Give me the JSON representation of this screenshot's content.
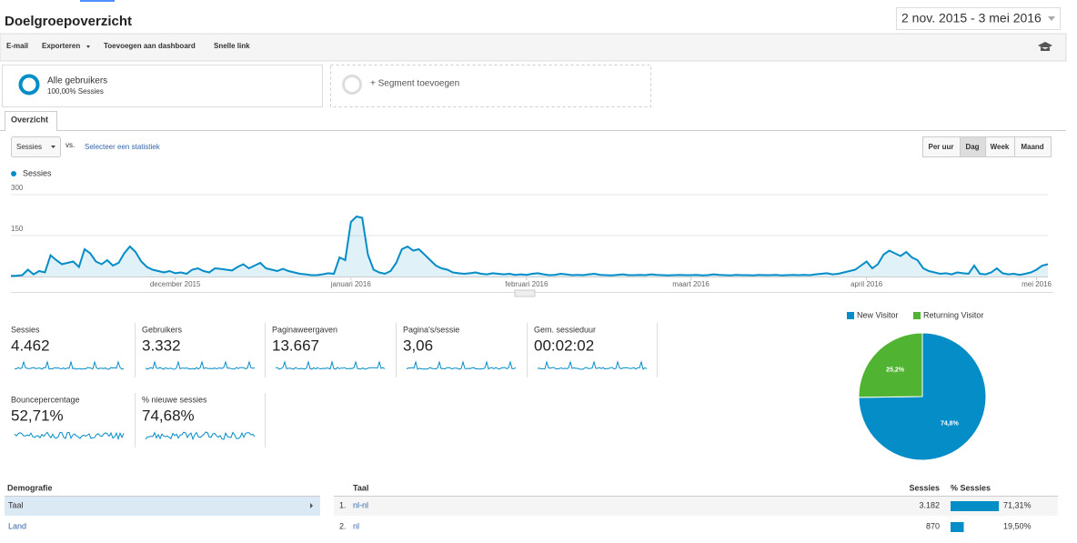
{
  "header": {
    "title": "Doelgroepoverzicht",
    "date_range": "2 nov. 2015 - 3 mei 2016"
  },
  "toolbar": [
    "E-mail",
    "Exporteren",
    "Toevoegen aan dashboard",
    "Snelle link"
  ],
  "segments": {
    "active": {
      "name": "Alle gebruikers",
      "detail": "100,00% Sessies"
    },
    "add": "+ Segment toevoegen"
  },
  "tab": "Overzicht",
  "controls": {
    "metric": "Sessies",
    "vs": "vs.",
    "select": "Selecteer een statistiek",
    "buttons": [
      "Per uur",
      "Dag",
      "Week",
      "Maand"
    ]
  },
  "chart_data": [
    {
      "type": "line",
      "series": [
        {
          "name": "Sessies",
          "color": "#058dc7",
          "values": [
            2,
            3,
            5,
            25,
            8,
            20,
            15,
            78,
            60,
            45,
            50,
            55,
            35,
            100,
            85,
            55,
            45,
            60,
            40,
            50,
            85,
            110,
            90,
            55,
            35,
            25,
            20,
            15,
            20,
            12,
            15,
            10,
            25,
            30,
            20,
            15,
            30,
            28,
            25,
            22,
            35,
            45,
            30,
            40,
            50,
            30,
            25,
            20,
            28,
            20,
            15,
            10,
            8,
            5,
            5,
            8,
            12,
            10,
            70,
            60,
            200,
            220,
            215,
            80,
            25,
            15,
            10,
            20,
            50,
            100,
            110,
            95,
            100,
            80,
            60,
            40,
            30,
            25,
            15,
            12,
            10,
            12,
            15,
            10,
            8,
            12,
            10,
            8,
            10,
            6,
            8,
            6,
            10,
            12,
            8,
            5,
            6,
            10,
            8,
            5,
            6,
            5,
            8,
            10,
            6,
            5,
            4,
            6,
            8,
            5,
            5,
            6,
            5,
            8,
            6,
            5,
            4,
            5,
            6,
            5,
            5,
            6,
            4,
            5,
            8,
            6,
            5,
            4,
            6,
            5,
            5,
            4,
            6,
            5,
            5,
            6,
            4,
            5,
            6,
            5,
            6,
            5,
            8,
            10,
            12,
            8,
            10,
            15,
            20,
            25,
            40,
            55,
            30,
            45,
            80,
            95,
            85,
            75,
            90,
            70,
            60,
            30,
            20,
            15,
            10,
            12,
            8,
            15,
            12,
            10,
            40,
            10,
            8,
            15,
            30,
            12,
            8,
            10,
            6,
            10,
            15,
            25,
            40,
            45
          ]
        }
      ],
      "xlim": [
        0,
        183
      ],
      "xticks": [
        {
          "value": 29,
          "label": "december 2015"
        },
        {
          "value": 60,
          "label": "januari 2016"
        },
        {
          "value": 91,
          "label": "februari 2016"
        },
        {
          "value": 120,
          "label": "maart 2016"
        },
        {
          "value": 151,
          "label": "april 2016"
        },
        {
          "value": 181,
          "label": "mei 2016"
        }
      ],
      "ylim": [
        0,
        300
      ],
      "yticks": [
        150,
        300
      ],
      "grid": true
    },
    {
      "type": "pie",
      "categories": [
        "New Visitor",
        "Returning Visitor"
      ],
      "values": [
        74.8,
        25.2
      ],
      "value_labels": [
        "74,8%",
        "25,2%"
      ],
      "colors": [
        "#058dc7",
        "#50b432"
      ]
    }
  ],
  "metrics": [
    {
      "label": "Sessies",
      "value": "4.462"
    },
    {
      "label": "Gebruikers",
      "value": "3.332"
    },
    {
      "label": "Paginaweergaven",
      "value": "13.667"
    },
    {
      "label": "Pagina's/sessie",
      "value": "3,06"
    },
    {
      "label": "Gem. sessieduur",
      "value": "00:02:02"
    },
    {
      "label": "Bouncepercentage",
      "value": "52,71%"
    },
    {
      "label": "% nieuwe sessies",
      "value": "74,68%"
    }
  ],
  "demografie": {
    "title": "Demografie",
    "items": [
      "Taal",
      "Land"
    ]
  },
  "table": {
    "headers": [
      "Taal",
      "Sessies",
      "% Sessies"
    ],
    "rows": [
      {
        "rank": "1.",
        "name": "nl-nl",
        "sessions": "3.182",
        "pct": 71.31,
        "pct_label": "71,31%"
      },
      {
        "rank": "2.",
        "name": "nl",
        "sessions": "870",
        "pct": 19.5,
        "pct_label": "19,50%"
      }
    ]
  }
}
